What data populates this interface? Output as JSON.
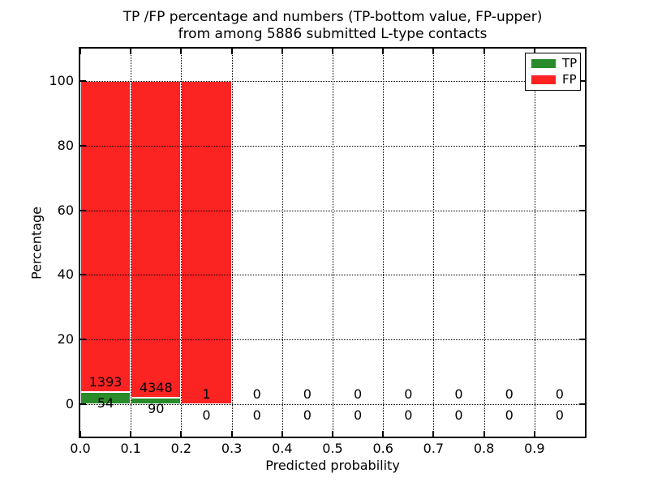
{
  "chart_data": {
    "type": "bar",
    "stacked": true,
    "title_lines": [
      "TP /FP percentage and numbers (TP-bottom value, FP-upper)",
      "from among 5886 submitted L-type contacts"
    ],
    "xlabel": "Predicted probability",
    "ylabel": "Percentage",
    "xlim": [
      0.0,
      1.0
    ],
    "ylim": [
      -10,
      110
    ],
    "xticks": [
      0.0,
      0.1,
      0.2,
      0.3,
      0.4,
      0.5,
      0.6,
      0.7,
      0.8,
      0.9
    ],
    "xtick_labels": [
      "0.0",
      "0.1",
      "0.2",
      "0.3",
      "0.4",
      "0.5",
      "0.6",
      "0.7",
      "0.8",
      "0.9"
    ],
    "yticks": [
      0,
      20,
      40,
      60,
      80,
      100
    ],
    "ytick_labels": [
      "0",
      "20",
      "40",
      "60",
      "80",
      "100"
    ],
    "grid": true,
    "grid_style": "dotted",
    "colors": {
      "tp": "#2a8b2a",
      "fp": "#fc2323",
      "bar_edge": "#ffffff"
    },
    "legend": {
      "position": "upper right",
      "entries": [
        {
          "label": "TP",
          "color": "#2a8b2a"
        },
        {
          "label": "FP",
          "color": "#fc2323"
        }
      ]
    },
    "bins": [
      {
        "x_start": 0.0,
        "x_end": 0.1,
        "tp_count": 54,
        "fp_count": 1393,
        "tp_pct": 3.73,
        "fp_pct": 96.27
      },
      {
        "x_start": 0.1,
        "x_end": 0.2,
        "tp_count": 90,
        "fp_count": 4348,
        "tp_pct": 2.03,
        "fp_pct": 97.97
      },
      {
        "x_start": 0.2,
        "x_end": 0.3,
        "tp_count": 0,
        "fp_count": 1,
        "tp_pct": 0,
        "fp_pct": 100
      },
      {
        "x_start": 0.3,
        "x_end": 0.4,
        "tp_count": 0,
        "fp_count": 0,
        "tp_pct": 0,
        "fp_pct": 0
      },
      {
        "x_start": 0.4,
        "x_end": 0.5,
        "tp_count": 0,
        "fp_count": 0,
        "tp_pct": 0,
        "fp_pct": 0
      },
      {
        "x_start": 0.5,
        "x_end": 0.6,
        "tp_count": 0,
        "fp_count": 0,
        "tp_pct": 0,
        "fp_pct": 0
      },
      {
        "x_start": 0.6,
        "x_end": 0.7,
        "tp_count": 0,
        "fp_count": 0,
        "tp_pct": 0,
        "fp_pct": 0
      },
      {
        "x_start": 0.7,
        "x_end": 0.8,
        "tp_count": 0,
        "fp_count": 0,
        "tp_pct": 0,
        "fp_pct": 0
      },
      {
        "x_start": 0.8,
        "x_end": 0.9,
        "tp_count": 0,
        "fp_count": 0,
        "tp_pct": 0,
        "fp_pct": 0
      },
      {
        "x_start": 0.9,
        "x_end": 1.0,
        "tp_count": 0,
        "fp_count": 0,
        "tp_pct": 0,
        "fp_pct": 0
      }
    ],
    "series": [
      {
        "name": "TP",
        "color": "#2a8b2a",
        "values": [
          3.73,
          2.03,
          0,
          0,
          0,
          0,
          0,
          0,
          0,
          0
        ]
      },
      {
        "name": "FP",
        "color": "#fc2323",
        "values": [
          96.27,
          97.97,
          100,
          0,
          0,
          0,
          0,
          0,
          0,
          0
        ]
      }
    ]
  }
}
